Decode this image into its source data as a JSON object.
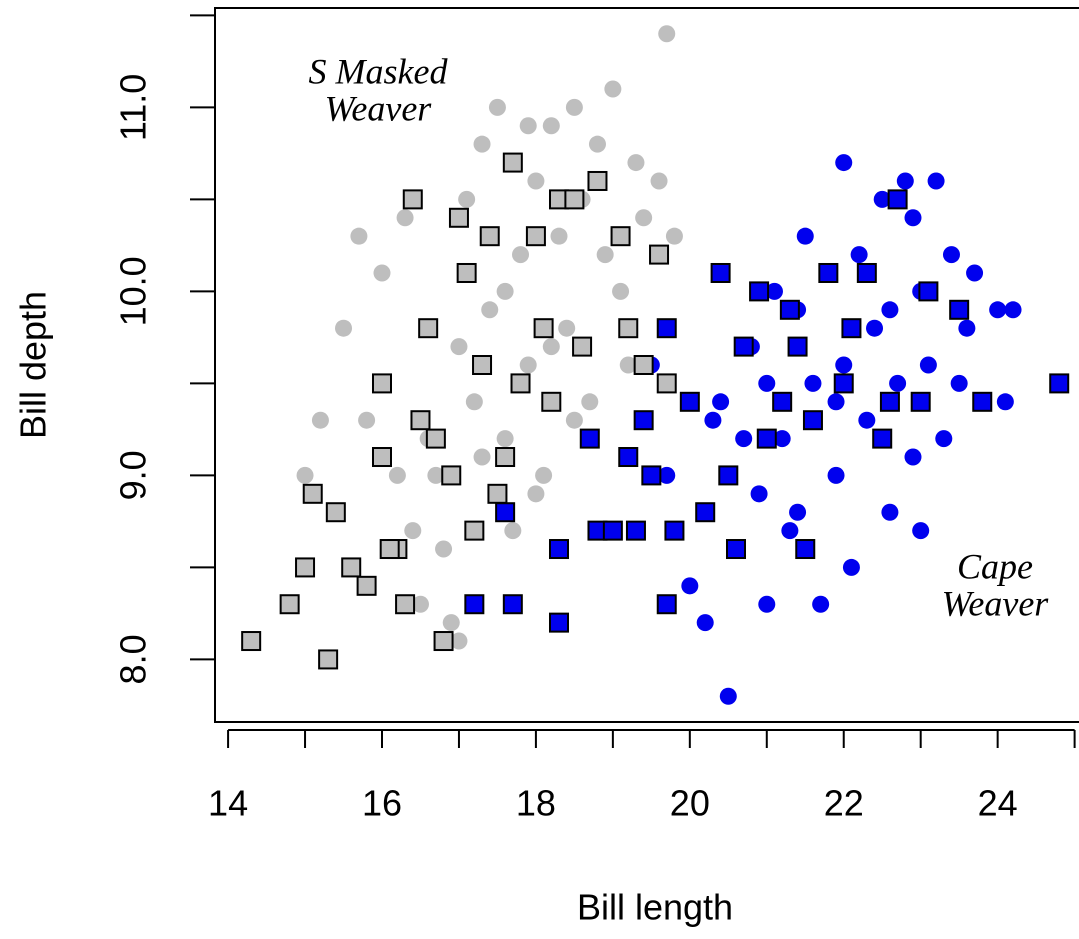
{
  "chart_data": {
    "type": "scatter",
    "x_label": "Bill length",
    "y_label": "Bill depth",
    "xlim": [
      13.83,
      25.2
    ],
    "ylim": [
      7.66,
      11.54
    ],
    "xticks": [
      14,
      16,
      18,
      20,
      22,
      24
    ],
    "xminor_ticks": [
      15,
      17,
      19,
      21,
      23,
      25
    ],
    "yticks": [
      {
        "value": 8,
        "label": "8.0"
      },
      {
        "value": 9,
        "label": "9.0"
      },
      {
        "value": 10,
        "label": "10.0"
      },
      {
        "value": 11,
        "label": "11.0"
      }
    ],
    "yminor_ticks": [
      8.5,
      9.5,
      10.5,
      11.5
    ],
    "annotations": [
      {
        "lines": [
          "S Masked",
          "Weaver"
        ]
      },
      {
        "lines": [
          "Cape",
          "Weaver"
        ]
      }
    ],
    "series": [
      {
        "marker": "circle",
        "color": "#bebebe",
        "x": [
          15,
          15.2,
          15.5,
          15.7,
          16,
          16,
          16.2,
          16.4,
          16.5,
          16.6,
          16.8,
          16.9,
          17,
          17.1,
          17.2,
          17.3,
          17.4,
          17.5,
          17.6,
          17.7,
          17.8,
          17.9,
          18,
          18.1,
          18.2,
          18.3,
          18.4,
          18.5,
          18.6,
          18.7,
          18.8,
          18.9,
          19,
          19.1,
          19.2,
          19.3,
          19.4,
          19.6,
          19.7,
          19.8,
          17,
          16.3,
          18,
          18.5,
          17.6,
          16.7,
          17.3,
          18.2,
          15.8,
          17.9
        ],
        "values": [
          9.0,
          9.3,
          9.8,
          10.3,
          10.1,
          9.5,
          9.0,
          8.7,
          8.3,
          9.2,
          8.6,
          8.2,
          8.1,
          10.5,
          9.4,
          10.8,
          9.9,
          11.0,
          9.2,
          8.7,
          10.2,
          9.6,
          10.6,
          9.0,
          10.9,
          10.3,
          9.8,
          11.0,
          10.5,
          9.4,
          10.8,
          10.2,
          11.1,
          10.0,
          9.6,
          10.7,
          10.4,
          10.6,
          11.4,
          10.3,
          9.7,
          10.4,
          8.9,
          9.3,
          10.0,
          9.0,
          9.1,
          9.7,
          9.3,
          10.9
        ]
      },
      {
        "marker": "circle",
        "color": "#0000ee",
        "x": [
          19.5,
          19.7,
          20,
          20.2,
          20.3,
          20.5,
          20.6,
          20.8,
          20.9,
          21,
          21.1,
          21.2,
          21.3,
          21.4,
          21.5,
          21.6,
          21.7,
          21.8,
          21.9,
          22,
          22,
          22.1,
          22.2,
          22.3,
          22.4,
          22.5,
          22.6,
          22.7,
          22.8,
          22.9,
          23,
          23,
          23.1,
          23.2,
          23.3,
          23.4,
          23.5,
          23.6,
          23.7,
          23.8,
          24,
          24.1,
          24.2,
          21,
          21.4,
          22.6,
          20.4,
          21.9,
          22.9,
          20.7
        ],
        "values": [
          9.6,
          9.0,
          8.4,
          8.2,
          9.3,
          7.8,
          8.6,
          9.7,
          8.9,
          8.3,
          10.0,
          9.2,
          8.7,
          9.9,
          10.3,
          9.5,
          8.3,
          10.1,
          9.0,
          9.6,
          10.7,
          8.5,
          10.2,
          9.3,
          9.8,
          10.5,
          8.8,
          9.5,
          10.6,
          9.1,
          8.7,
          10.0,
          9.6,
          10.6,
          9.2,
          10.2,
          9.5,
          9.8,
          10.1,
          9.4,
          9.9,
          9.4,
          9.9,
          9.5,
          8.8,
          9.9,
          9.4,
          9.4,
          10.4,
          9.2
        ]
      },
      {
        "marker": "square",
        "color": "#bebebe",
        "x": [
          14.3,
          14.8,
          15,
          15.1,
          15.3,
          15.4,
          15.6,
          15.8,
          16,
          16,
          16.2,
          16.3,
          16.4,
          16.5,
          16.6,
          16.8,
          16.9,
          17,
          17.1,
          17.2,
          17.3,
          17.4,
          17.6,
          17.7,
          17.8,
          18,
          18.1,
          18.3,
          18.5,
          18.6,
          18.8,
          19.1,
          19.2,
          19.4,
          19.6,
          19.7,
          18.2,
          16.7,
          17.5,
          16.1
        ],
        "values": [
          8.1,
          8.3,
          8.5,
          8.9,
          8.0,
          8.8,
          8.5,
          8.4,
          9.1,
          9.5,
          8.6,
          8.3,
          10.5,
          9.3,
          9.8,
          8.1,
          9.0,
          10.4,
          10.1,
          8.7,
          9.6,
          10.3,
          9.1,
          10.7,
          9.5,
          10.3,
          9.8,
          10.5,
          10.5,
          9.7,
          10.6,
          10.3,
          9.8,
          9.6,
          10.2,
          9.5,
          9.4,
          9.2,
          8.9,
          8.6
        ]
      },
      {
        "marker": "square",
        "color": "#0000ee",
        "x": [
          17.2,
          17.6,
          17.7,
          18.3,
          18.3,
          18.7,
          18.8,
          19.0,
          19.2,
          19.3,
          19.4,
          19.5,
          19.7,
          19.7,
          19.8,
          20,
          20.2,
          20.4,
          20.5,
          20.6,
          20.7,
          20.9,
          21,
          21.2,
          21.4,
          21.5,
          21.6,
          21.8,
          22,
          22.1,
          22.3,
          22.5,
          22.6,
          22.7,
          23,
          23.1,
          23.5,
          23.8,
          24.8,
          21.3
        ],
        "values": [
          8.3,
          8.8,
          8.3,
          8.6,
          8.2,
          9.2,
          8.7,
          8.7,
          9.1,
          8.7,
          9.3,
          9.0,
          8.3,
          9.8,
          8.7,
          9.4,
          8.8,
          10.1,
          9.0,
          8.6,
          9.7,
          10.0,
          9.2,
          9.4,
          9.7,
          8.6,
          9.3,
          10.1,
          9.5,
          9.8,
          10.1,
          9.2,
          9.4,
          10.5,
          9.4,
          10.0,
          9.9,
          9.4,
          9.5,
          9.9
        ]
      }
    ]
  }
}
